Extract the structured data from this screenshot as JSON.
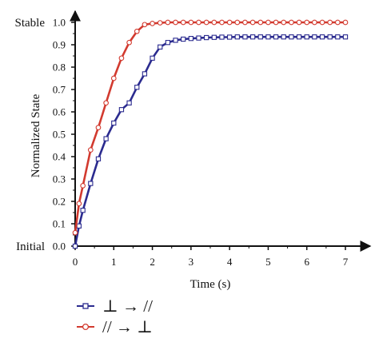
{
  "chart_data": {
    "type": "line",
    "xlabel": "Time (s)",
    "ylabel": "Normalized State",
    "xlim": [
      0,
      7.3
    ],
    "ylim": [
      0,
      1.05
    ],
    "x_ticks": [
      0,
      1,
      2,
      3,
      4,
      5,
      6,
      7
    ],
    "y_ticks": [
      0.0,
      0.1,
      0.2,
      0.3,
      0.4,
      0.5,
      0.6,
      0.7,
      0.8,
      0.9,
      1.0
    ],
    "y_tick_labels": [
      "0.0",
      "0.1",
      "0.2",
      "0.3",
      "0.4",
      "0.5",
      "0.6",
      "0.7",
      "0.8",
      "0.9",
      "1.0"
    ],
    "y_end_labels": {
      "bottom": "Initial",
      "top": "Stable"
    },
    "grid": false,
    "legend_position": "bottom-left",
    "series": [
      {
        "name": "⊥ → //",
        "color": "#2b2b8f",
        "marker": "square",
        "x": [
          0,
          0.1,
          0.2,
          0.4,
          0.6,
          0.8,
          1.0,
          1.2,
          1.4,
          1.6,
          1.8,
          2.0,
          2.2,
          2.4,
          2.6,
          2.8,
          3.0,
          3.2,
          3.4,
          3.6,
          3.8,
          4.0,
          4.2,
          4.4,
          4.6,
          4.8,
          5.0,
          5.2,
          5.4,
          5.6,
          5.8,
          6.0,
          6.2,
          6.4,
          6.6,
          6.8,
          7.0
        ],
        "y": [
          0.0,
          0.09,
          0.16,
          0.28,
          0.39,
          0.48,
          0.55,
          0.61,
          0.64,
          0.71,
          0.77,
          0.84,
          0.89,
          0.91,
          0.92,
          0.925,
          0.928,
          0.93,
          0.932,
          0.933,
          0.934,
          0.934,
          0.935,
          0.935,
          0.935,
          0.935,
          0.935,
          0.935,
          0.935,
          0.935,
          0.935,
          0.935,
          0.935,
          0.935,
          0.935,
          0.935,
          0.935
        ]
      },
      {
        "name": "// → ⊥",
        "color": "#d23a2f",
        "marker": "circle",
        "x": [
          0,
          0.1,
          0.2,
          0.4,
          0.6,
          0.8,
          1.0,
          1.2,
          1.4,
          1.6,
          1.8,
          2.0,
          2.2,
          2.4,
          2.6,
          2.8,
          3.0,
          3.2,
          3.4,
          3.6,
          3.8,
          4.0,
          4.2,
          4.4,
          4.6,
          4.8,
          5.0,
          5.2,
          5.4,
          5.6,
          5.8,
          6.0,
          6.2,
          6.4,
          6.6,
          6.8,
          7.0
        ],
        "y": [
          0.06,
          0.19,
          0.27,
          0.43,
          0.53,
          0.64,
          0.75,
          0.84,
          0.91,
          0.96,
          0.99,
          0.995,
          0.998,
          1.0,
          1.0,
          1.0,
          1.0,
          1.0,
          1.0,
          1.0,
          1.0,
          1.0,
          1.0,
          1.0,
          1.0,
          1.0,
          1.0,
          1.0,
          1.0,
          1.0,
          1.0,
          1.0,
          1.0,
          1.0,
          1.0,
          1.0,
          1.0
        ]
      }
    ]
  }
}
